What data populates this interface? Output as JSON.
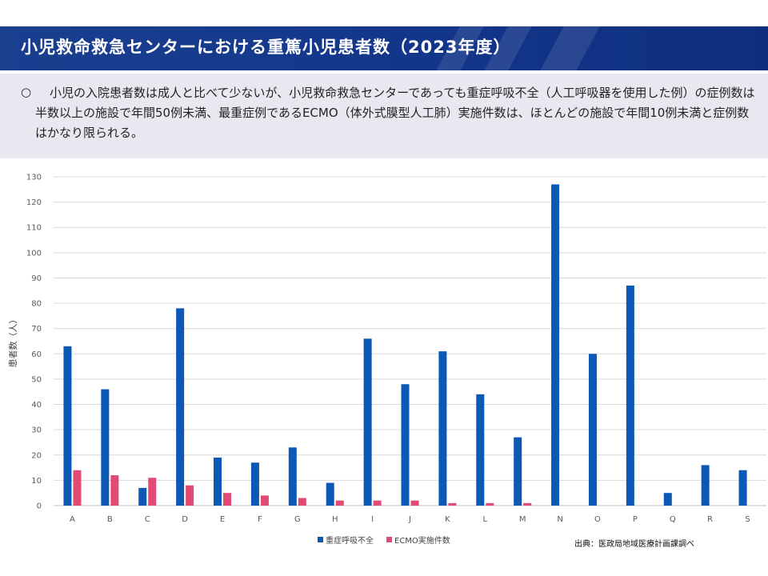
{
  "header": {
    "title": "小児救命救急センターにおける重篤小児患者数（2023年度）",
    "bg_color": "#15398a"
  },
  "summary": {
    "bullet": "○",
    "text": "小児の入院患者数は成人と比べて少ないが、小児救命救急センターであっても重症呼吸不全（人工呼吸器を使用した例）の症例数は半数以上の施設で年間50例未満、最重症例であるECMO（体外式膜型人工肺）実施件数は、ほとんどの施設で年間10例未満と症例数はかなり限られる。"
  },
  "source": "出典：医政局地域医療計画課調べ",
  "chart_data": {
    "type": "bar",
    "title": "",
    "xlabel": "",
    "ylabel": "患者数（人）",
    "ylim": [
      0,
      130
    ],
    "yticks": [
      0,
      10,
      20,
      30,
      40,
      50,
      60,
      70,
      80,
      90,
      100,
      110,
      120,
      130
    ],
    "grid": true,
    "legend_position": "bottom-center",
    "categories": [
      "A",
      "B",
      "C",
      "D",
      "E",
      "F",
      "G",
      "H",
      "I",
      "J",
      "K",
      "L",
      "M",
      "N",
      "O",
      "P",
      "Q",
      "R",
      "S"
    ],
    "series": [
      {
        "name": "重症呼吸不全",
        "color": "#0b58b5",
        "values": [
          63,
          46,
          7,
          78,
          19,
          17,
          23,
          9,
          66,
          48,
          61,
          44,
          27,
          127,
          60,
          87,
          5,
          16,
          14
        ]
      },
      {
        "name": "ECMO実施件数",
        "color": "#e04a74",
        "values": [
          14,
          12,
          11,
          8,
          5,
          4,
          3,
          2,
          2,
          2,
          1,
          1,
          1,
          0,
          0,
          0,
          0,
          0,
          0
        ]
      }
    ]
  }
}
